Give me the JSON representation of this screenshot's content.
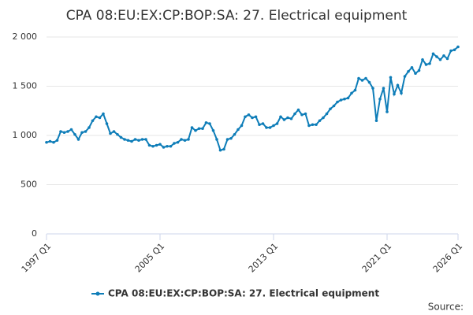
{
  "chart_data": {
    "type": "line",
    "title": "CPA 08:EU:EX:CP:BOP:SA: 27. Electrical equipment",
    "source": "Source:",
    "categories": [
      "1997 Q1",
      null,
      null,
      null,
      null,
      null,
      null,
      null,
      null,
      null,
      null,
      null,
      null,
      null,
      null,
      null,
      null,
      null,
      null,
      null,
      null,
      null,
      null,
      null,
      null,
      null,
      null,
      null,
      null,
      null,
      null,
      null,
      "2005 Q1",
      null,
      null,
      null,
      null,
      null,
      null,
      null,
      null,
      null,
      null,
      null,
      null,
      null,
      null,
      null,
      null,
      null,
      null,
      null,
      null,
      null,
      null,
      null,
      null,
      null,
      null,
      null,
      null,
      null,
      null,
      null,
      "2013 Q1",
      null,
      null,
      null,
      null,
      null,
      null,
      null,
      null,
      null,
      null,
      null,
      null,
      null,
      null,
      null,
      null,
      null,
      null,
      null,
      null,
      null,
      null,
      null,
      null,
      null,
      null,
      null,
      null,
      null,
      null,
      null,
      "2021 Q1",
      null,
      null,
      null,
      null,
      null,
      null,
      null,
      null,
      null,
      null,
      null,
      null,
      null,
      null,
      null,
      null,
      null,
      null,
      null,
      "2026 Q1"
    ],
    "series": [
      {
        "name": "CPA 08:EU:EX:CP:BOP:SA: 27. Electrical equipment",
        "color": "#0e7db8",
        "values": [
          930,
          940,
          930,
          950,
          1040,
          1030,
          1040,
          1060,
          1010,
          960,
          1030,
          1040,
          1080,
          1150,
          1190,
          1180,
          1220,
          1120,
          1020,
          1040,
          1010,
          980,
          960,
          950,
          940,
          960,
          950,
          960,
          960,
          900,
          890,
          900,
          910,
          880,
          890,
          890,
          920,
          930,
          960,
          950,
          960,
          1080,
          1050,
          1070,
          1070,
          1130,
          1120,
          1050,
          960,
          850,
          860,
          960,
          970,
          1010,
          1060,
          1100,
          1190,
          1210,
          1180,
          1190,
          1110,
          1120,
          1080,
          1080,
          1100,
          1120,
          1190,
          1160,
          1180,
          1170,
          1220,
          1260,
          1210,
          1220,
          1100,
          1110,
          1110,
          1150,
          1180,
          1220,
          1270,
          1300,
          1340,
          1360,
          1370,
          1380,
          1430,
          1460,
          1580,
          1560,
          1580,
          1540,
          1480,
          1150,
          1370,
          1480,
          1240,
          1590,
          1420,
          1510,
          1430,
          1600,
          1650,
          1690,
          1630,
          1660,
          1770,
          1720,
          1730,
          1830,
          1800,
          1770,
          1810,
          1780,
          1860,
          1870,
          1900
        ]
      }
    ],
    "ylim": [
      0,
      2000
    ],
    "yticks": [
      0,
      500,
      {
        "value": 1000,
        "label": "1 000"
      },
      {
        "value": 1500,
        "label": "1 500"
      },
      {
        "value": 2000,
        "label": "2 000"
      }
    ],
    "grid": true,
    "legend": "bottom"
  }
}
